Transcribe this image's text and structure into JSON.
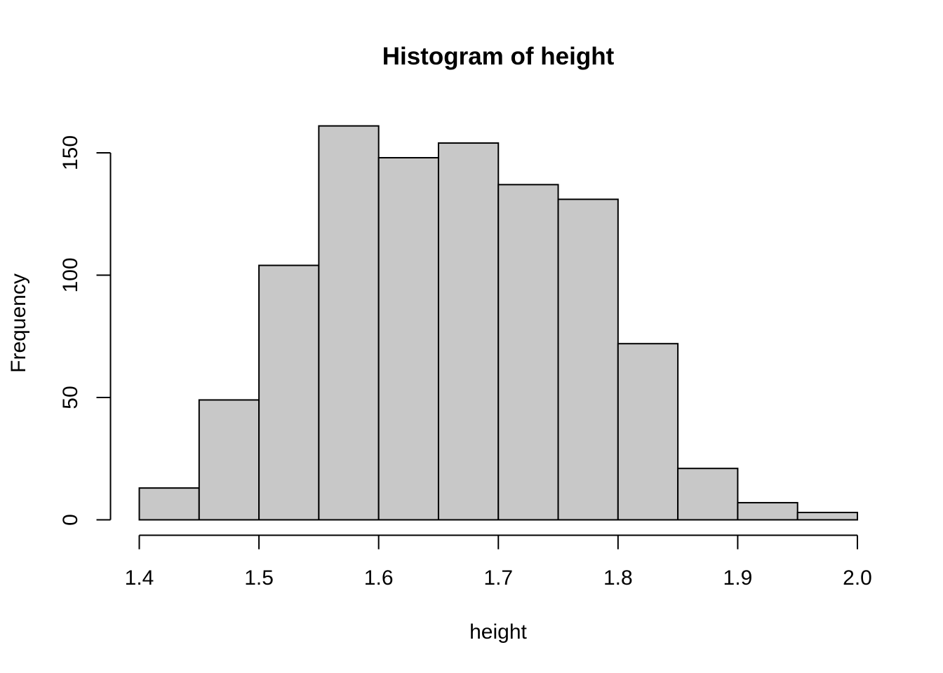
{
  "chart_data": {
    "type": "bar",
    "title": "Histogram of height",
    "xlabel": "height",
    "ylabel": "Frequency",
    "bins": [
      {
        "from": 1.4,
        "to": 1.45,
        "count": 13
      },
      {
        "from": 1.45,
        "to": 1.5,
        "count": 49
      },
      {
        "from": 1.5,
        "to": 1.55,
        "count": 104
      },
      {
        "from": 1.55,
        "to": 1.6,
        "count": 161
      },
      {
        "from": 1.6,
        "to": 1.65,
        "count": 148
      },
      {
        "from": 1.65,
        "to": 1.7,
        "count": 154
      },
      {
        "from": 1.7,
        "to": 1.75,
        "count": 137
      },
      {
        "from": 1.75,
        "to": 1.8,
        "count": 131
      },
      {
        "from": 1.8,
        "to": 1.85,
        "count": 72
      },
      {
        "from": 1.85,
        "to": 1.9,
        "count": 21
      },
      {
        "from": 1.9,
        "to": 1.95,
        "count": 7
      },
      {
        "from": 1.95,
        "to": 2.0,
        "count": 3
      }
    ],
    "xlim": [
      1.4,
      2.0
    ],
    "ylim": [
      0,
      150
    ],
    "x_ticks": [
      "1.4",
      "1.5",
      "1.6",
      "1.7",
      "1.8",
      "1.9",
      "2.0"
    ],
    "y_ticks": [
      "0",
      "50",
      "100",
      "150"
    ],
    "bar_fill": "#c8c8c8",
    "bar_stroke": "#000000",
    "grid": false
  }
}
